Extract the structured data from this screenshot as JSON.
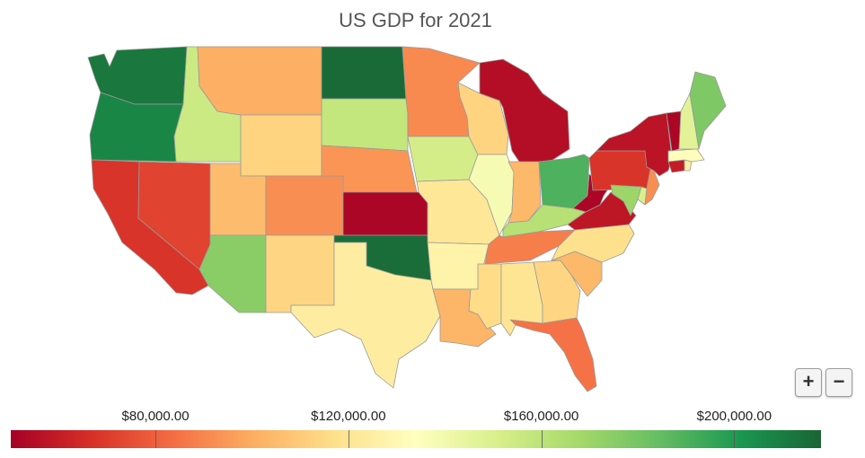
{
  "title": "US GDP for 2021",
  "colors": {
    "low": "#a50026",
    "mid": "#ffffbf",
    "high": "#1a6434",
    "stops": [
      "#a50026",
      "#d73027",
      "#f46d43",
      "#fdae61",
      "#fee08b",
      "#ffffbf",
      "#d9ef8b",
      "#a6d96a",
      "#66bd63",
      "#1a9850",
      "#1a6434"
    ]
  },
  "legend": {
    "min": 50000,
    "max": 218000,
    "labels": [
      "$80,000.00",
      "$120,000.00",
      "$160,000.00",
      "$200,000.00"
    ],
    "ticks": [
      80000,
      120000,
      160000,
      200000
    ]
  },
  "zoom": {
    "in_label": "+",
    "out_label": "−"
  },
  "map_data": {
    "type": "choropleth",
    "region": "contiguous-us",
    "metric": "GDP",
    "states": [
      {
        "abbr": "WA",
        "value": 212000
      },
      {
        "abbr": "OR",
        "value": 207000
      },
      {
        "abbr": "CA",
        "value": 68000
      },
      {
        "abbr": "NV",
        "value": 72000
      },
      {
        "abbr": "ID",
        "value": 155000
      },
      {
        "abbr": "MT",
        "value": 101000
      },
      {
        "abbr": "WY",
        "value": 113000
      },
      {
        "abbr": "UT",
        "value": 105000
      },
      {
        "abbr": "AZ",
        "value": 175000
      },
      {
        "abbr": "CO",
        "value": 92000
      },
      {
        "abbr": "NM",
        "value": 114000
      },
      {
        "abbr": "ND",
        "value": 216000
      },
      {
        "abbr": "SD",
        "value": 158000
      },
      {
        "abbr": "NE",
        "value": 94000
      },
      {
        "abbr": "KS",
        "value": 52000
      },
      {
        "abbr": "OK",
        "value": 215000
      },
      {
        "abbr": "TX",
        "value": 124000
      },
      {
        "abbr": "MN",
        "value": 91000
      },
      {
        "abbr": "IA",
        "value": 152000
      },
      {
        "abbr": "MO",
        "value": 121000
      },
      {
        "abbr": "AR",
        "value": 127000
      },
      {
        "abbr": "LA",
        "value": 103000
      },
      {
        "abbr": "WI",
        "value": 113000
      },
      {
        "abbr": "IL",
        "value": 138000
      },
      {
        "abbr": "MI",
        "value": 55000
      },
      {
        "abbr": "IN",
        "value": 104000
      },
      {
        "abbr": "OH",
        "value": 190000
      },
      {
        "abbr": "KY",
        "value": 162000
      },
      {
        "abbr": "TN",
        "value": 88000
      },
      {
        "abbr": "MS",
        "value": 116000
      },
      {
        "abbr": "AL",
        "value": 120000
      },
      {
        "abbr": "GA",
        "value": 114000
      },
      {
        "abbr": "FL",
        "value": 85000
      },
      {
        "abbr": "SC",
        "value": 104000
      },
      {
        "abbr": "NC",
        "value": 118000
      },
      {
        "abbr": "VA",
        "value": 58000
      },
      {
        "abbr": "WV",
        "value": 52000
      },
      {
        "abbr": "MD",
        "value": 170000
      },
      {
        "abbr": "DE",
        "value": 150000
      },
      {
        "abbr": "PA",
        "value": 68000
      },
      {
        "abbr": "NJ",
        "value": 92000
      },
      {
        "abbr": "NY",
        "value": 57000
      },
      {
        "abbr": "CT",
        "value": 60000
      },
      {
        "abbr": "RI",
        "value": 125000
      },
      {
        "abbr": "MA",
        "value": 133000
      },
      {
        "abbr": "VT",
        "value": 52000
      },
      {
        "abbr": "NH",
        "value": 147000
      },
      {
        "abbr": "ME",
        "value": 178000
      }
    ]
  }
}
